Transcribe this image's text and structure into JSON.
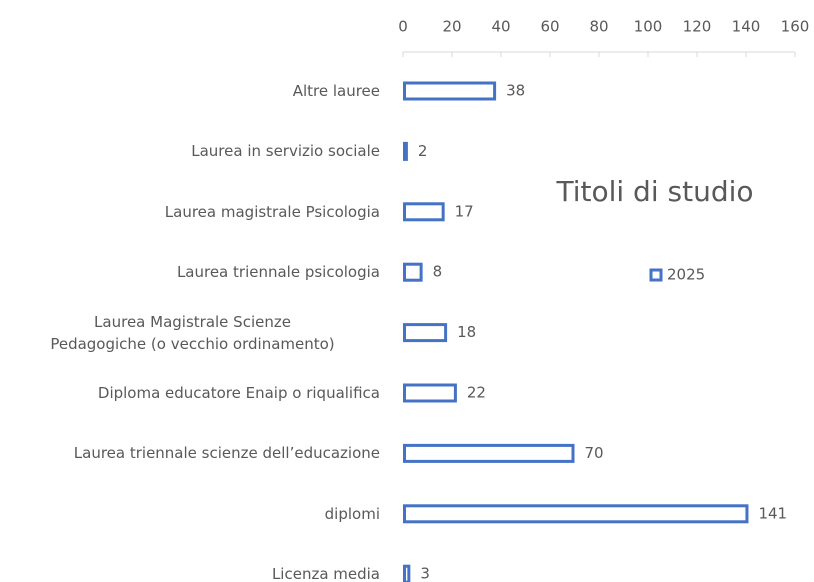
{
  "chart_data": {
    "type": "bar",
    "orientation": "horizontal",
    "title": "Titoli di studio",
    "categories": [
      "Altre lauree",
      "Laurea in servizio sociale",
      "Laurea magistrale Psicologia",
      "Laurea triennale psicologia",
      "Laurea Magistrale Scienze Pedagogiche (o vecchio ordinamento)",
      "Diploma educatore Enaip o riqualifica",
      "Laurea triennale scienze dell’educazione",
      "diplomi",
      "Licenza media"
    ],
    "series": [
      {
        "name": "2025",
        "color": "#4472c4",
        "values": [
          38,
          2,
          17,
          8,
          18,
          22,
          70,
          141,
          3
        ]
      }
    ],
    "xlim": [
      0,
      160
    ],
    "xticks": [
      0,
      20,
      40,
      60,
      80,
      100,
      120,
      140,
      160
    ],
    "legend": "right",
    "data_labels": true
  }
}
